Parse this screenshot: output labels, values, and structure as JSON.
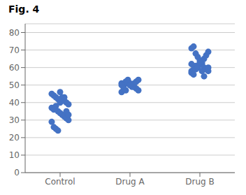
{
  "chart_data": {
    "type": "scatter",
    "title": "Fig. 4",
    "categories": [
      "Control",
      "Drug A",
      "Drug B"
    ],
    "values": [
      [
        45,
        44,
        43,
        42,
        46,
        43,
        41,
        40,
        39,
        37,
        36,
        38,
        35,
        34,
        33,
        32,
        31,
        30,
        29,
        26,
        25,
        24,
        40,
        42,
        43,
        35,
        33
      ],
      [
        51,
        50,
        52,
        53,
        51,
        50,
        49,
        48,
        47,
        46,
        50,
        51,
        52,
        50,
        49,
        51,
        52,
        53,
        50,
        48,
        47,
        51,
        50
      ],
      [
        58,
        59,
        61,
        60,
        62,
        63,
        65,
        67,
        69,
        71,
        72,
        68,
        66,
        64,
        62,
        60,
        59,
        58,
        57,
        56,
        59,
        60,
        63,
        58,
        55,
        59,
        60,
        62
      ]
    ],
    "color": "#4472C4",
    "ylim": [
      0,
      85
    ],
    "yticks": [
      0,
      10,
      20,
      30,
      40,
      50,
      60,
      70,
      80
    ],
    "grid": true
  }
}
